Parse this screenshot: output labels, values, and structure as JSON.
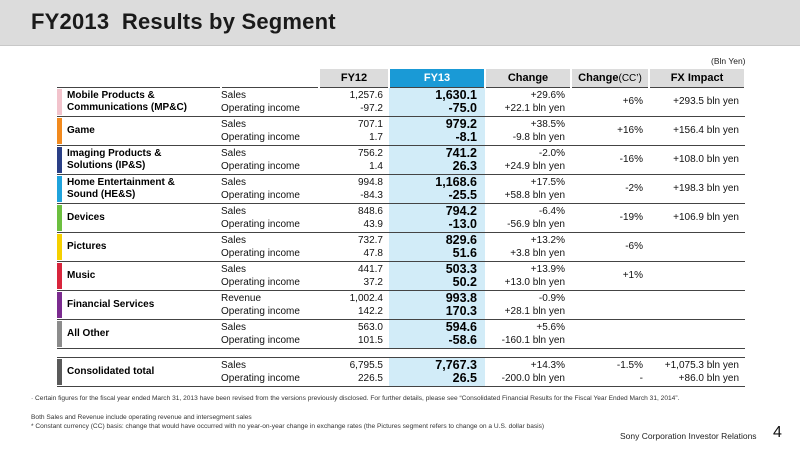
{
  "title": "FY2013  Results by Segment",
  "unit_note": "(Bln Yen)",
  "columns": {
    "fy12": "FY12",
    "fy13": "FY13",
    "change": "Change",
    "change_cc": "Change",
    "change_cc_suffix": "(CC’)",
    "fx": "FX Impact"
  },
  "segments": [
    {
      "name": "Mobile Products &\nCommunications  (MP&C)",
      "color": "#f2c3cc",
      "label1": "Sales",
      "label2": "Operating income",
      "fy12_1": "1,257.6",
      "fy12_2": "-97.2",
      "fy13_1": "1,630.1",
      "fy13_2": "-75.0",
      "chg_1": "+29.6%",
      "chg_2": "+22.1 bln yen",
      "cc": "+6%",
      "fx": "+293.5 bln yen"
    },
    {
      "name": "Game",
      "color": "#f28a1e",
      "label1": "Sales",
      "label2": "Operating income",
      "fy12_1": "707.1",
      "fy12_2": "1.7",
      "fy13_1": "979.2",
      "fy13_2": "-8.1",
      "chg_1": "+38.5%",
      "chg_2": "-9.8 bln yen",
      "cc": "+16%",
      "fx": "+156.4 bln yen"
    },
    {
      "name": "Imaging Products &\nSolutions  (IP&S)",
      "color": "#2a3f86",
      "label1": "Sales",
      "label2": "Operating income",
      "fy12_1": "756.2",
      "fy12_2": "1.4",
      "fy13_1": "741.2",
      "fy13_2": "26.3",
      "chg_1": "-2.0%",
      "chg_2": "+24.9 bln yen",
      "cc": "-16%",
      "fx": "+108.0 bln yen"
    },
    {
      "name": "Home Entertainment &\nSound  (HE&S)",
      "color": "#1fa3dc",
      "label1": "Sales",
      "label2": "Operating income",
      "fy12_1": "994.8",
      "fy12_2": "-84.3",
      "fy13_1": "1,168.6",
      "fy13_2": "-25.5",
      "chg_1": "+17.5%",
      "chg_2": "+58.8 bln yen",
      "cc": "-2%",
      "fx": "+198.3 bln yen"
    },
    {
      "name": "Devices",
      "color": "#6cbf3f",
      "label1": "Sales",
      "label2": "Operating income",
      "fy12_1": "848.6",
      "fy12_2": "43.9",
      "fy13_1": "794.2",
      "fy13_2": "-13.0",
      "chg_1": "-6.4%",
      "chg_2": "-56.9 bln yen",
      "cc": "-19%",
      "fx": "+106.9 bln yen"
    },
    {
      "name": "Pictures",
      "color": "#f5d000",
      "label1": "Sales",
      "label2": "Operating income",
      "fy12_1": "732.7",
      "fy12_2": "47.8",
      "fy13_1": "829.6",
      "fy13_2": "51.6",
      "chg_1": "+13.2%",
      "chg_2": "+3.8 bln yen",
      "cc": "-6%",
      "fx": ""
    },
    {
      "name": "Music",
      "color": "#d8253c",
      "label1": "Sales",
      "label2": "Operating income",
      "fy12_1": "441.7",
      "fy12_2": "37.2",
      "fy13_1": "503.3",
      "fy13_2": "50.2",
      "chg_1": "+13.9%",
      "chg_2": "+13.0 bln yen",
      "cc": "+1%",
      "fx": ""
    },
    {
      "name": "Financial  Services",
      "color": "#7b2b8f",
      "label1": "Revenue",
      "label2": "Operating income",
      "fy12_1": "1,002.4",
      "fy12_2": "142.2",
      "fy13_1": "993.8",
      "fy13_2": "170.3",
      "chg_1": "-0.9%",
      "chg_2": "+28.1 bln yen",
      "cc": "",
      "fx": ""
    },
    {
      "name": "All Other",
      "color": "#8c8c8c",
      "label1": "Sales",
      "label2": "Operating income",
      "fy12_1": "563.0",
      "fy12_2": "101.5",
      "fy13_1": "594.6",
      "fy13_2": "-58.6",
      "chg_1": "+5.6%",
      "chg_2": "-160.1 bln yen",
      "cc": "",
      "fx": ""
    }
  ],
  "total": {
    "name": "Consolidated  total",
    "color": "#5a5a5a",
    "label1": "Sales",
    "label2": "Operating income",
    "fy12_1": "6,795.5",
    "fy12_2": "226.5",
    "fy13_1": "7,767.3",
    "fy13_2": "26.5",
    "chg_1": "+14.3%",
    "chg_2": "-200.0 bln yen",
    "cc_1": "-1.5%",
    "cc_2": "-",
    "fx_1": "+1,075.3 bln yen",
    "fx_2": "+86.0 bln yen"
  },
  "footnotes": {
    "note1": "· Certain  figures for the fiscal year ended  March 31, 2013 have been revised from the versions previously disclosed.  For further details, please see “Consolidated  Financial  Results  for the Fiscal  Year Ended  March 31, 2014”.",
    "note2": "  Both Sales and Revenue include operating  revenue and intersegment  sales",
    "note3": "* Constant  currency (CC)  basis: change that would have occurred with no year-on-year change in exchange rates  (the Pictures segment  refers to change on a U.S.  dollar basis)"
  },
  "footer": "Sony Corporation  Investor Relations",
  "page_number": "4"
}
